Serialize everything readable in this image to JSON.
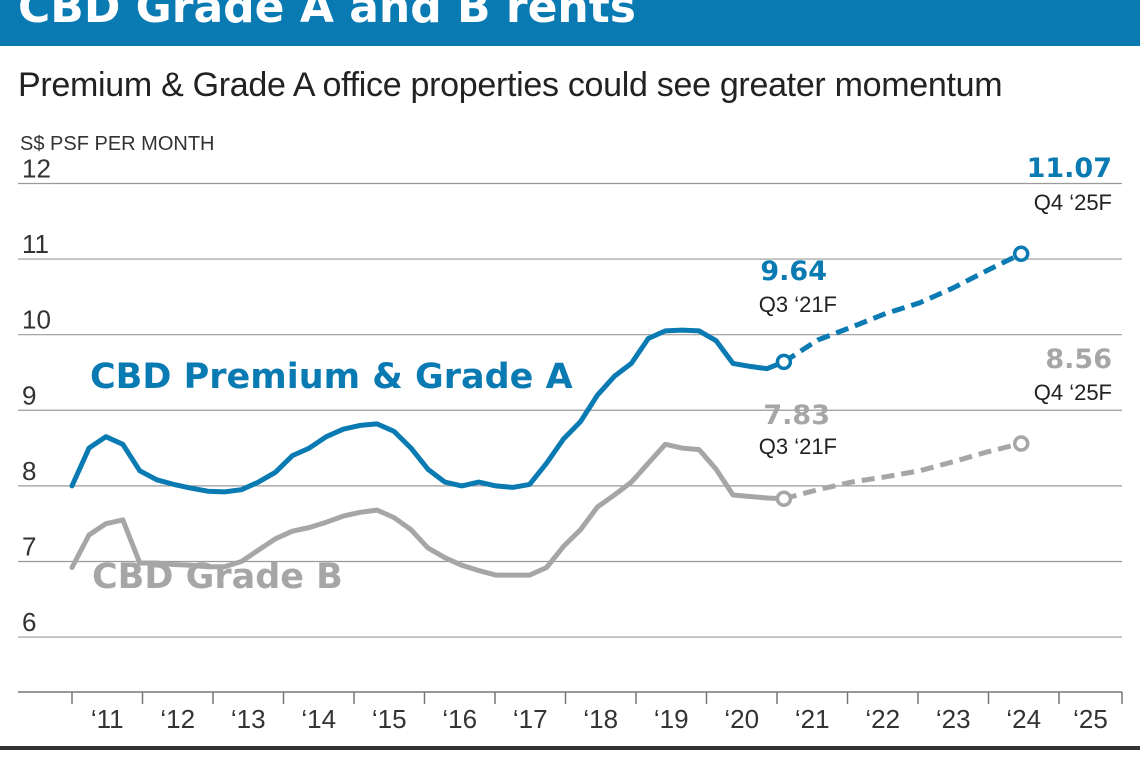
{
  "header": {
    "title": "CBD Grade A and B rents",
    "subtitle": "Premium & Grade A office properties could see greater momentum"
  },
  "colors": {
    "grade_a": "#0a7ab3",
    "grade_b": "#a6a6a6",
    "header_bg": "#0a7ab3"
  },
  "chart_data": {
    "type": "line",
    "title": "CBD Grade A and B rents",
    "subtitle": "Premium & Grade A office properties could see greater momentum",
    "ylabel": "S$ PSF PER MONTH",
    "xlabel": "",
    "ylim": [
      5.3,
      12.3
    ],
    "yticks": [
      6,
      7,
      8,
      9,
      10,
      11,
      12
    ],
    "xlim": [
      2010.55,
      2025.9
    ],
    "xticks": [
      {
        "x": 2011.0,
        "label": "‘11"
      },
      {
        "x": 2012.0,
        "label": "‘12"
      },
      {
        "x": 2013.0,
        "label": "‘13"
      },
      {
        "x": 2014.0,
        "label": "‘14"
      },
      {
        "x": 2015.0,
        "label": "‘15"
      },
      {
        "x": 2016.0,
        "label": "‘16"
      },
      {
        "x": 2017.0,
        "label": "‘17"
      },
      {
        "x": 2018.0,
        "label": "‘18"
      },
      {
        "x": 2019.0,
        "label": "‘19"
      },
      {
        "x": 2020.0,
        "label": "‘20"
      },
      {
        "x": 2021.0,
        "label": "‘21"
      },
      {
        "x": 2022.0,
        "label": "‘22"
      },
      {
        "x": 2023.0,
        "label": "‘23"
      },
      {
        "x": 2024.0,
        "label": "‘24"
      },
      {
        "x": 2025.0,
        "label": "‘25"
      }
    ],
    "series": [
      {
        "name": "CBD Premium & Grade A",
        "color": "#0a7ab3",
        "actual": [
          [
            2010.0,
            8.0
          ],
          [
            2010.25,
            8.5
          ],
          [
            2010.5,
            8.65
          ],
          [
            2010.75,
            8.55
          ],
          [
            2011.0,
            8.2
          ],
          [
            2011.25,
            8.08
          ],
          [
            2011.5,
            8.02
          ],
          [
            2011.75,
            7.97
          ],
          [
            2012.0,
            7.93
          ],
          [
            2012.25,
            7.92
          ],
          [
            2012.5,
            7.95
          ],
          [
            2012.75,
            8.05
          ],
          [
            2013.0,
            8.18
          ],
          [
            2013.25,
            8.4
          ],
          [
            2013.5,
            8.5
          ],
          [
            2013.75,
            8.65
          ],
          [
            2014.0,
            8.75
          ],
          [
            2014.25,
            8.8
          ],
          [
            2014.5,
            8.82
          ],
          [
            2014.75,
            8.72
          ],
          [
            2015.0,
            8.5
          ],
          [
            2015.25,
            8.22
          ],
          [
            2015.5,
            8.05
          ],
          [
            2015.75,
            8.0
          ],
          [
            2016.0,
            8.05
          ],
          [
            2016.25,
            8.0
          ],
          [
            2016.5,
            7.98
          ],
          [
            2016.75,
            8.02
          ],
          [
            2017.0,
            8.3
          ],
          [
            2017.25,
            8.62
          ],
          [
            2017.5,
            8.85
          ],
          [
            2017.75,
            9.2
          ],
          [
            2018.0,
            9.45
          ],
          [
            2018.25,
            9.62
          ],
          [
            2018.5,
            9.95
          ],
          [
            2018.75,
            10.05
          ],
          [
            2019.0,
            10.06
          ],
          [
            2019.25,
            10.05
          ],
          [
            2019.5,
            9.92
          ],
          [
            2019.75,
            9.62
          ],
          [
            2020.0,
            9.58
          ],
          [
            2020.25,
            9.55
          ],
          [
            2020.5,
            9.64
          ]
        ],
        "forecast": [
          [
            2020.5,
            9.64
          ],
          [
            2021.0,
            9.93
          ],
          [
            2021.5,
            10.1
          ],
          [
            2022.0,
            10.28
          ],
          [
            2022.5,
            10.42
          ],
          [
            2023.0,
            10.62
          ],
          [
            2023.5,
            10.85
          ],
          [
            2024.0,
            11.07
          ]
        ],
        "annotations": {
          "q3_21": {
            "value": "9.64",
            "period": "Q3 ‘21F"
          },
          "q4_25": {
            "value": "11.07",
            "period": "Q4 ‘25F"
          }
        }
      },
      {
        "name": "CBD Grade B",
        "color": "#a6a6a6",
        "actual": [
          [
            2010.0,
            6.92
          ],
          [
            2010.25,
            7.35
          ],
          [
            2010.5,
            7.5
          ],
          [
            2010.75,
            7.55
          ],
          [
            2011.0,
            6.98
          ],
          [
            2011.25,
            6.98
          ],
          [
            2011.5,
            6.96
          ],
          [
            2011.75,
            6.95
          ],
          [
            2012.0,
            6.93
          ],
          [
            2012.25,
            6.93
          ],
          [
            2012.5,
            7.0
          ],
          [
            2012.75,
            7.15
          ],
          [
            2013.0,
            7.3
          ],
          [
            2013.25,
            7.4
          ],
          [
            2013.5,
            7.45
          ],
          [
            2013.75,
            7.52
          ],
          [
            2014.0,
            7.6
          ],
          [
            2014.25,
            7.65
          ],
          [
            2014.5,
            7.68
          ],
          [
            2014.75,
            7.58
          ],
          [
            2015.0,
            7.42
          ],
          [
            2015.25,
            7.18
          ],
          [
            2015.5,
            7.05
          ],
          [
            2015.75,
            6.95
          ],
          [
            2016.0,
            6.88
          ],
          [
            2016.25,
            6.82
          ],
          [
            2016.5,
            6.82
          ],
          [
            2016.75,
            6.82
          ],
          [
            2017.0,
            6.92
          ],
          [
            2017.25,
            7.2
          ],
          [
            2017.5,
            7.42
          ],
          [
            2017.75,
            7.72
          ],
          [
            2018.0,
            7.88
          ],
          [
            2018.25,
            8.05
          ],
          [
            2018.5,
            8.3
          ],
          [
            2018.75,
            8.55
          ],
          [
            2019.0,
            8.5
          ],
          [
            2019.25,
            8.48
          ],
          [
            2019.5,
            8.22
          ],
          [
            2019.75,
            7.88
          ],
          [
            2020.0,
            7.86
          ],
          [
            2020.25,
            7.84
          ],
          [
            2020.5,
            7.83
          ]
        ],
        "forecast": [
          [
            2020.5,
            7.83
          ],
          [
            2021.0,
            7.95
          ],
          [
            2021.5,
            8.05
          ],
          [
            2022.0,
            8.12
          ],
          [
            2022.5,
            8.2
          ],
          [
            2023.0,
            8.32
          ],
          [
            2023.5,
            8.45
          ],
          [
            2024.0,
            8.56
          ]
        ],
        "annotations": {
          "q3_21": {
            "value": "7.83",
            "period": "Q3 ‘21F"
          },
          "q4_25": {
            "value": "8.56",
            "period": "Q4 ‘25F"
          }
        }
      }
    ]
  }
}
